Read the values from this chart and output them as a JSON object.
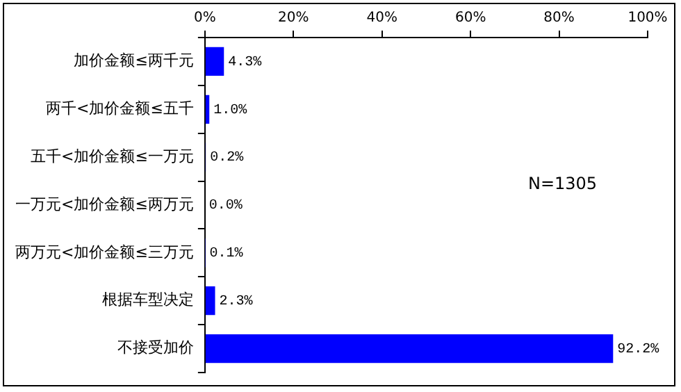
{
  "chart_data": {
    "type": "bar",
    "orientation": "horizontal",
    "categories": [
      "加价金额≤两千元",
      "两千<加价金额≤五千",
      "五千<加价金额≤一万元",
      "一万元<加价金额≤两万元",
      "两万元<加价金额≤三万元",
      "根据车型决定",
      "不接受加价"
    ],
    "values": [
      4.3,
      1.0,
      0.2,
      0.0,
      0.1,
      2.3,
      92.2
    ],
    "value_labels": [
      "4.3%",
      "1.0%",
      "0.2%",
      "0.0%",
      "0.1%",
      "2.3%",
      "92.2%"
    ],
    "color": "#0000ff",
    "xlim": [
      0,
      100
    ],
    "xticks": [
      {
        "value": 0,
        "label": "0%"
      },
      {
        "value": 20,
        "label": "20%"
      },
      {
        "value": 40,
        "label": "40%"
      },
      {
        "value": 60,
        "label": "60%"
      },
      {
        "value": 80,
        "label": "80%"
      },
      {
        "value": 100,
        "label": "100%"
      }
    ],
    "grid": false,
    "legend": false,
    "annotations": [
      "N=1305"
    ]
  }
}
